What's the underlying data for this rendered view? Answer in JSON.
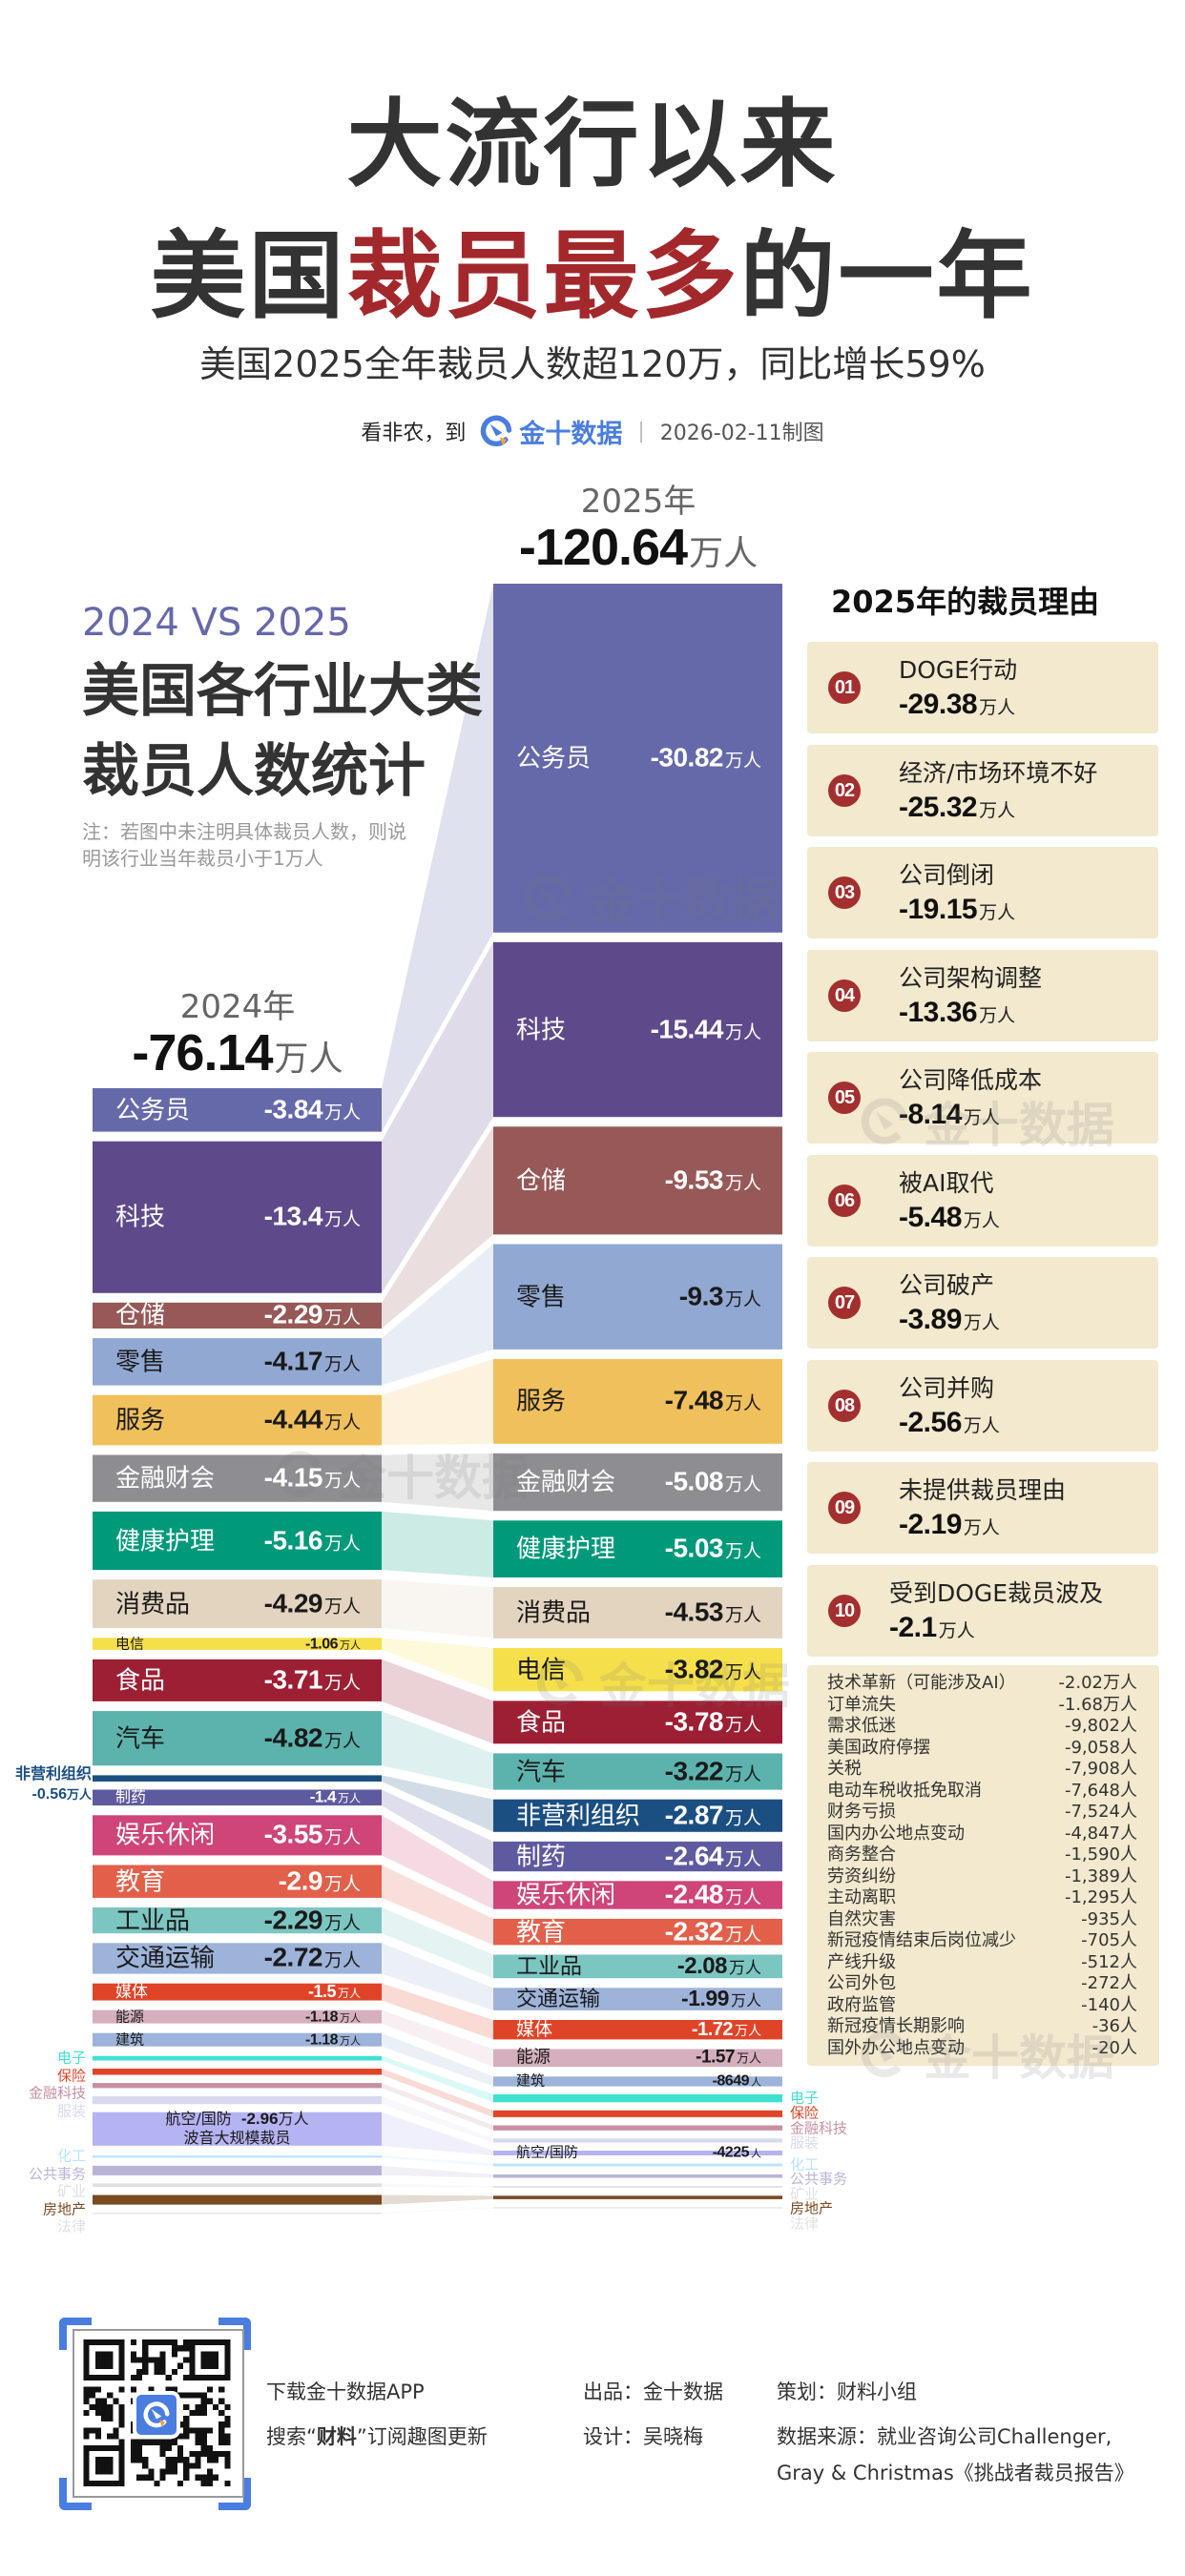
{
  "header": {
    "title_line1": "大流行以来",
    "title_line2_pre": "美国",
    "title_line2_highlight": "裁员最多",
    "title_line2_post": "的一年",
    "subtitle": "美国2025全年裁员人数超120万，同比增长59%",
    "source_prefix": "看非农，到",
    "brand": "金十数据",
    "separator": "|",
    "date": "2026-02-11制图"
  },
  "intro": {
    "compare": "2024 VS 2025",
    "title_line1": "美国各行业大类",
    "title_line2": "裁员人数统计",
    "note": "注：若图中未注明具体裁员人数，则说明该行业当年裁员小于1万人"
  },
  "colors": {
    "accent_red": "#a3282c",
    "brand_blue": "#4a7de0",
    "brand_orange": "#f2a33a",
    "compare_purple": "#6669a9",
    "card_background": "#f2e9ce",
    "badge_red": "#a32f2f"
  },
  "chart_data": {
    "type": "bar",
    "subtype": "stacked-column-comparison-with-flow-bands",
    "title": "美国各行业大类裁员人数统计",
    "unit": "万人",
    "legend": "none",
    "columns": [
      {
        "year": "2024年",
        "total_num": "-76.14",
        "total_unit": "万人",
        "total_value": -76.14
      },
      {
        "year": "2025年",
        "total_num": "-120.64",
        "total_unit": "万人",
        "total_value": -120.64
      }
    ],
    "industries": [
      {
        "name": "公务员",
        "color": "#6669a9",
        "text_color": "#ffffff",
        "y2024": {
          "value": -3.84,
          "num": "-3.84",
          "unit": "万人"
        },
        "y2025": {
          "value": -30.82,
          "num": "-30.82",
          "unit": "万人"
        }
      },
      {
        "name": "科技",
        "color": "#5e4a8a",
        "text_color": "#ffffff",
        "y2024": {
          "value": -13.4,
          "num": "-13.4",
          "unit": "万人"
        },
        "y2025": {
          "value": -15.44,
          "num": "-15.44",
          "unit": "万人"
        }
      },
      {
        "name": "仓储",
        "color": "#975958",
        "text_color": "#ffffff",
        "y2024": {
          "value": -2.29,
          "num": "-2.29",
          "unit": "万人"
        },
        "y2025": {
          "value": -9.53,
          "num": "-9.53",
          "unit": "万人"
        }
      },
      {
        "name": "零售",
        "color": "#91a8d2",
        "text_color": "#1a1a1a",
        "y2024": {
          "value": -4.17,
          "num": "-4.17",
          "unit": "万人"
        },
        "y2025": {
          "value": -9.3,
          "num": "-9.3",
          "unit": "万人"
        }
      },
      {
        "name": "服务",
        "color": "#f0c05c",
        "text_color": "#1a1a1a",
        "y2024": {
          "value": -4.44,
          "num": "-4.44",
          "unit": "万人"
        },
        "y2025": {
          "value": -7.48,
          "num": "-7.48",
          "unit": "万人"
        }
      },
      {
        "name": "金融财会",
        "color": "#8e8e92",
        "text_color": "#ffffff",
        "y2024": {
          "value": -4.15,
          "num": "-4.15",
          "unit": "万人"
        },
        "y2025": {
          "value": -5.08,
          "num": "-5.08",
          "unit": "万人"
        }
      },
      {
        "name": "健康护理",
        "color": "#00997a",
        "text_color": "#ffffff",
        "y2024": {
          "value": -5.16,
          "num": "-5.16",
          "unit": "万人"
        },
        "y2025": {
          "value": -5.03,
          "num": "-5.03",
          "unit": "万人"
        }
      },
      {
        "name": "消费品",
        "color": "#e2d4bf",
        "text_color": "#1a1a1a",
        "y2024": {
          "value": -4.29,
          "num": "-4.29",
          "unit": "万人"
        },
        "y2025": {
          "value": -4.53,
          "num": "-4.53",
          "unit": "万人"
        }
      },
      {
        "name": "电信",
        "color": "#f5e04c",
        "text_color": "#1a1a1a",
        "y2024": {
          "value": -1.06,
          "num": "-1.06",
          "unit": "万人"
        },
        "y2025": {
          "value": -3.82,
          "num": "-3.82",
          "unit": "万人"
        }
      },
      {
        "name": "食品",
        "color": "#9c1f33",
        "text_color": "#ffffff",
        "y2024": {
          "value": -3.71,
          "num": "-3.71",
          "unit": "万人"
        },
        "y2025": {
          "value": -3.78,
          "num": "-3.78",
          "unit": "万人"
        }
      },
      {
        "name": "汽车",
        "color": "#5cb3ae",
        "text_color": "#1a1a1a",
        "y2024": {
          "value": -4.82,
          "num": "-4.82",
          "unit": "万人"
        },
        "y2025": {
          "value": -3.22,
          "num": "-3.22",
          "unit": "万人"
        }
      },
      {
        "name": "非营利组织",
        "color": "#1b4f82",
        "text_color": "#ffffff",
        "y2024": {
          "value": -0.56,
          "num": "-0.56",
          "unit": "万人",
          "outside": true
        },
        "y2025": {
          "value": -2.87,
          "num": "-2.87",
          "unit": "万人"
        }
      },
      {
        "name": "制药",
        "color": "#5e5aa0",
        "text_color": "#ffffff",
        "y2024": {
          "value": -1.4,
          "num": "-1.4",
          "unit": "万人"
        },
        "y2025": {
          "value": -2.64,
          "num": "-2.64",
          "unit": "万人"
        }
      },
      {
        "name": "娱乐休闲",
        "color": "#cf4479",
        "text_color": "#ffffff",
        "y2024": {
          "value": -3.55,
          "num": "-3.55",
          "unit": "万人"
        },
        "y2025": {
          "value": -2.48,
          "num": "-2.48",
          "unit": "万人"
        }
      },
      {
        "name": "教育",
        "color": "#e2604a",
        "text_color": "#ffffff",
        "y2024": {
          "value": -2.9,
          "num": "-2.9",
          "unit": "万人"
        },
        "y2025": {
          "value": -2.32,
          "num": "-2.32",
          "unit": "万人"
        }
      },
      {
        "name": "工业品",
        "color": "#7cc6c2",
        "text_color": "#1a1a1a",
        "y2024": {
          "value": -2.29,
          "num": "-2.29",
          "unit": "万人"
        },
        "y2025": {
          "value": -2.08,
          "num": "-2.08",
          "unit": "万人"
        }
      },
      {
        "name": "交通运输",
        "color": "#9db3d9",
        "text_color": "#1a1a1a",
        "y2024": {
          "value": -2.72,
          "num": "-2.72",
          "unit": "万人"
        },
        "y2025": {
          "value": -1.99,
          "num": "-1.99",
          "unit": "万人"
        }
      },
      {
        "name": "媒体",
        "color": "#e04428",
        "text_color": "#ffffff",
        "y2024": {
          "value": -1.5,
          "num": "-1.5",
          "unit": "万人"
        },
        "y2025": {
          "value": -1.72,
          "num": "-1.72",
          "unit": "万人"
        }
      },
      {
        "name": "能源",
        "color": "#d5afbd",
        "text_color": "#1a1a1a",
        "y2024": {
          "value": -1.18,
          "num": "-1.18",
          "unit": "万人"
        },
        "y2025": {
          "value": -1.57,
          "num": "-1.57",
          "unit": "万人"
        }
      },
      {
        "name": "建筑",
        "color": "#9db3d9",
        "text_color": "#1a1a1a",
        "y2024": {
          "value": -1.18,
          "num": "-1.18",
          "unit": "万人"
        },
        "y2025": {
          "value": -0.8649,
          "num": "-8649",
          "unit": "人"
        }
      },
      {
        "name": "电子",
        "color": "#40e0d0",
        "text_color": "#1a1a1a",
        "y2024": {
          "value": -0.4,
          "num": null,
          "estimated": true
        },
        "y2025": {
          "value": -0.7,
          "num": null,
          "estimated": true
        }
      },
      {
        "name": "保险",
        "color": "#e04428",
        "text_color": "#1a1a1a",
        "y2024": {
          "value": -0.55,
          "num": null,
          "estimated": true
        },
        "y2025": {
          "value": -0.6,
          "num": null,
          "estimated": true
        }
      },
      {
        "name": "金融科技",
        "color": "#c88fa2",
        "text_color": "#1a1a1a",
        "y2024": {
          "value": -0.45,
          "num": null,
          "estimated": true
        },
        "y2025": {
          "value": -0.45,
          "num": null,
          "estimated": true
        }
      },
      {
        "name": "服装",
        "color": "#d8d8ef",
        "text_color": "#1a1a1a",
        "y2024": {
          "value": -0.7,
          "num": null,
          "estimated": true
        },
        "y2025": {
          "value": -0.35,
          "num": null,
          "estimated": true
        }
      },
      {
        "name": "航空/国防",
        "color": "#b5b3f2",
        "text_color": "#1a1a1a",
        "y2024": {
          "value": -2.96,
          "num": "-2.96",
          "unit": "万人",
          "note": "波音大规模裁员"
        },
        "y2025": {
          "value": -0.4225,
          "num": "-4225",
          "unit": "人"
        }
      },
      {
        "name": "化工",
        "color": "#b8e6f5",
        "text_color": "#1a1a1a",
        "y2024": {
          "value": -0.2,
          "num": null,
          "estimated": true
        },
        "y2025": {
          "value": -0.25,
          "num": null,
          "estimated": true
        }
      },
      {
        "name": "公共事务",
        "color": "#b9b4d6",
        "text_color": "#1a1a1a",
        "y2024": {
          "value": -0.85,
          "num": null,
          "estimated": true
        },
        "y2025": {
          "value": -0.3,
          "num": null,
          "estimated": true
        }
      },
      {
        "name": "矿业",
        "color": "#e0e0e0",
        "text_color": "#1a1a1a",
        "y2024": {
          "value": -0.3,
          "num": null,
          "estimated": true
        },
        "y2025": {
          "value": -0.15,
          "num": null,
          "estimated": true
        }
      },
      {
        "name": "房地产",
        "color": "#7a4a22",
        "text_color": "#1a1a1a",
        "y2024": {
          "value": -0.85,
          "num": null,
          "estimated": true
        },
        "y2025": {
          "value": -0.3,
          "num": null,
          "estimated": true
        }
      },
      {
        "name": "法律",
        "color": "#e2e2e2",
        "text_color": "#1a1a1a",
        "y2024": {
          "value": -0.1,
          "num": null,
          "estimated": true
        },
        "y2025": {
          "value": -0.1,
          "num": null,
          "estimated": true
        }
      }
    ]
  },
  "reasons": {
    "title": "2025年的裁员理由",
    "top": [
      {
        "rank": "01",
        "label": "DOGE行动",
        "num": "-29.38",
        "unit": "万人"
      },
      {
        "rank": "02",
        "label": "经济/市场环境不好",
        "num": "-25.32",
        "unit": "万人"
      },
      {
        "rank": "03",
        "label": "公司倒闭",
        "num": "-19.15",
        "unit": "万人"
      },
      {
        "rank": "04",
        "label": "公司架构调整",
        "num": "-13.36",
        "unit": "万人"
      },
      {
        "rank": "05",
        "label": "公司降低成本",
        "num": "-8.14",
        "unit": "万人"
      },
      {
        "rank": "06",
        "label": "被AI取代",
        "num": "-5.48",
        "unit": "万人"
      },
      {
        "rank": "07",
        "label": "公司破产",
        "num": "-3.89",
        "unit": "万人"
      },
      {
        "rank": "08",
        "label": "公司并购",
        "num": "-2.56",
        "unit": "万人"
      },
      {
        "rank": "09",
        "label": "未提供裁员理由",
        "num": "-2.19",
        "unit": "万人"
      },
      {
        "rank": "10",
        "label": "受到DOGE裁员波及",
        "num": "-2.1",
        "unit": "万人"
      }
    ],
    "others": [
      {
        "label": "技术革新（可能涉及AI）",
        "value": "-2.02万人"
      },
      {
        "label": "订单流失",
        "value": "-1.68万人"
      },
      {
        "label": "需求低迷",
        "value": "-9,802人"
      },
      {
        "label": "美国政府停摆",
        "value": "-9,058人"
      },
      {
        "label": "关税",
        "value": "-7,908人"
      },
      {
        "label": "电动车税收抵免取消",
        "value": "-7,648人"
      },
      {
        "label": "财务亏损",
        "value": "-7,524人"
      },
      {
        "label": "国内办公地点变动",
        "value": "-4,847人"
      },
      {
        "label": "商务整合",
        "value": "-1,590人"
      },
      {
        "label": "劳资纠纷",
        "value": "-1,389人"
      },
      {
        "label": "主动离职",
        "value": "-1,295人"
      },
      {
        "label": "自然灾害",
        "value": "-935人"
      },
      {
        "label": "新冠疫情结束后岗位减少",
        "value": "-705人"
      },
      {
        "label": "产线升级",
        "value": "-512人"
      },
      {
        "label": "公司外包",
        "value": "-272人"
      },
      {
        "label": "政府监管",
        "value": "-140人"
      },
      {
        "label": "新冠疫情长期影响",
        "value": "-36人"
      },
      {
        "label": "国外办公地点变动",
        "value": "-20人"
      }
    ]
  },
  "watermark": "金十数据",
  "footer": {
    "download": "下载金十数据APP",
    "search_pre": "搜索“",
    "search_bold": "财料",
    "search_post": "”订阅趣图更新",
    "producer": "出品：金十数据",
    "designer": "设计：吴晓梅",
    "planner": "策划：财料小组",
    "source_line1": "数据来源：就业咨询公司Challenger,",
    "source_line2": "Gray & Christmas《挑战者裁员报告》"
  }
}
